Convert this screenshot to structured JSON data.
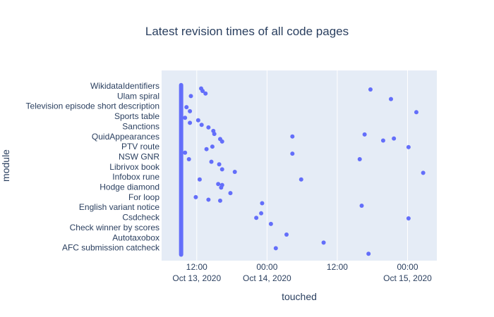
{
  "chart_data": {
    "type": "scatter",
    "title": "Latest revision times of all code pages",
    "xlabel": "touched",
    "ylabel": "module",
    "x_range": [
      "2020-10-13T06:00",
      "2020-10-15T05:00"
    ],
    "x_ticks": [
      {
        "at": "2020-10-13T12:00",
        "time": "12:00",
        "date": "Oct 13, 2020"
      },
      {
        "at": "2020-10-14T00:00",
        "time": "00:00",
        "date": "Oct 14, 2020"
      },
      {
        "at": "2020-10-14T12:00",
        "time": "12:00",
        "date": ""
      },
      {
        "at": "2020-10-15T00:00",
        "time": "00:00",
        "date": "Oct 15, 2020"
      }
    ],
    "y_tick_labels": [
      "WikidataIdentifiers",
      "Ulam spiral",
      "Television episode short description",
      "Sports table",
      "Sanctions",
      "QuidAppearances",
      "PTV route",
      "NSW GNR",
      "Librivox book",
      "Infobox rune",
      "Hodge diamond",
      "For loop",
      "English variant notice",
      "Csdcheck",
      "Check winner by scores",
      "Autotaxobox",
      "AFC submission catcheck"
    ],
    "dense_band": {
      "x": "2020-10-13T09:20",
      "label": "many modules touched at the same time"
    },
    "points": [
      {
        "x": "2020-10-13T12:45",
        "y": 0.5
      },
      {
        "x": "2020-10-13T13:00",
        "y": 1
      },
      {
        "x": "2020-10-13T13:30",
        "y": 1.5
      },
      {
        "x": "2020-10-13T11:00",
        "y": 2
      },
      {
        "x": "2020-10-13T10:15",
        "y": 4.2
      },
      {
        "x": "2020-10-13T10:50",
        "y": 5
      },
      {
        "x": "2020-10-13T10:00",
        "y": 6.3
      },
      {
        "x": "2020-10-13T12:15",
        "y": 6.8
      },
      {
        "x": "2020-10-13T10:50",
        "y": 7.3
      },
      {
        "x": "2020-10-13T12:50",
        "y": 7.7
      },
      {
        "x": "2020-10-13T14:00",
        "y": 8.2
      },
      {
        "x": "2020-10-13T14:50",
        "y": 8.9
      },
      {
        "x": "2020-10-13T15:00",
        "y": 9.5
      },
      {
        "x": "2020-10-13T16:00",
        "y": 10.5
      },
      {
        "x": "2020-10-13T16:20",
        "y": 11
      },
      {
        "x": "2020-10-13T14:40",
        "y": 12
      },
      {
        "x": "2020-10-13T13:40",
        "y": 12.5
      },
      {
        "x": "2020-10-13T10:00",
        "y": 13.2
      },
      {
        "x": "2020-10-13T10:40",
        "y": 14.5
      },
      {
        "x": "2020-10-13T14:30",
        "y": 15
      },
      {
        "x": "2020-10-13T15:50",
        "y": 15.5
      },
      {
        "x": "2020-10-13T16:20",
        "y": 16.5
      },
      {
        "x": "2020-10-13T18:30",
        "y": 17
      },
      {
        "x": "2020-10-13T12:30",
        "y": 18.5
      },
      {
        "x": "2020-10-13T15:40",
        "y": 19.4
      },
      {
        "x": "2020-10-13T16:20",
        "y": 19.6
      },
      {
        "x": "2020-10-13T16:10",
        "y": 20.1
      },
      {
        "x": "2020-10-13T17:45",
        "y": 21.2
      },
      {
        "x": "2020-10-13T11:50",
        "y": 22
      },
      {
        "x": "2020-10-13T14:00",
        "y": 22.5
      },
      {
        "x": "2020-10-13T16:00",
        "y": 22.7
      },
      {
        "x": "2020-10-13T23:10",
        "y": 23.2
      },
      {
        "x": "2020-10-13T23:00",
        "y": 25.2
      },
      {
        "x": "2020-10-13T22:10",
        "y": 26.1
      },
      {
        "x": "2020-10-14T00:40",
        "y": 27.3
      },
      {
        "x": "2020-10-14T01:30",
        "y": 32.1
      },
      {
        "x": "2020-10-14T03:20",
        "y": 29.4
      },
      {
        "x": "2020-10-14T04:20",
        "y": 10
      },
      {
        "x": "2020-10-14T04:20",
        "y": 13.4
      },
      {
        "x": "2020-10-14T05:50",
        "y": 18.5
      },
      {
        "x": "2020-10-14T09:40",
        "y": 31
      },
      {
        "x": "2020-10-14T15:50",
        "y": 14.5
      },
      {
        "x": "2020-10-14T16:10",
        "y": 23.7
      },
      {
        "x": "2020-10-14T16:40",
        "y": 9.6
      },
      {
        "x": "2020-10-14T17:20",
        "y": 33.2
      },
      {
        "x": "2020-10-14T17:40",
        "y": 0.7
      },
      {
        "x": "2020-10-14T19:50",
        "y": 10.8
      },
      {
        "x": "2020-10-14T21:10",
        "y": 2.6
      },
      {
        "x": "2020-10-14T21:40",
        "y": 10.4
      },
      {
        "x": "2020-10-15T00:10",
        "y": 26.2
      },
      {
        "x": "2020-10-15T00:10",
        "y": 12.1
      },
      {
        "x": "2020-10-15T01:30",
        "y": 5.2
      },
      {
        "x": "2020-10-15T02:40",
        "y": 17.2
      }
    ],
    "marker_color": "#636efa",
    "plot_bgcolor": "#e5ecf6",
    "grid": true,
    "legend": "none"
  }
}
